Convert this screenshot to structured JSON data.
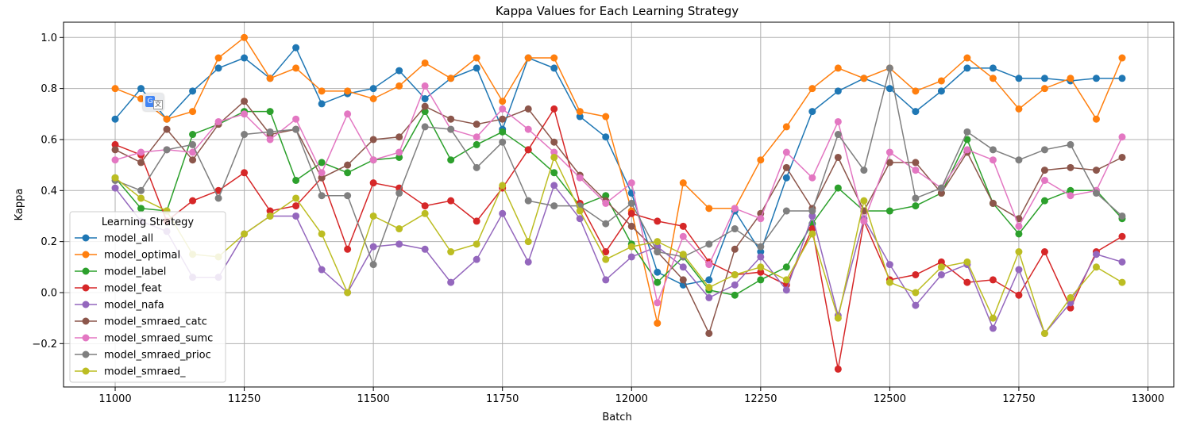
{
  "chart_data": {
    "type": "line",
    "title": "Kappa Values for Each Learning Strategy",
    "xlabel": "Batch",
    "ylabel": "Kappa",
    "xlim": [
      10900,
      13050
    ],
    "ylim": [
      -0.37,
      1.06
    ],
    "xticks": [
      11000,
      11250,
      11500,
      11750,
      12000,
      12250,
      12500,
      12750,
      13000
    ],
    "yticks": [
      -0.2,
      0.0,
      0.2,
      0.4,
      0.6,
      0.8,
      1.0
    ],
    "xtick_labels": [
      "11000",
      "11250",
      "11500",
      "11750",
      "12000",
      "12250",
      "12500",
      "12750",
      "13000"
    ],
    "ytick_labels": [
      "−0.2",
      "0.0",
      "0.2",
      "0.4",
      "0.6",
      "0.8",
      "1.0"
    ],
    "grid": true,
    "legend_title": "Learning Strategy",
    "legend_position": "lower-left",
    "x": [
      11000,
      11050,
      11100,
      11150,
      11200,
      11250,
      11300,
      11350,
      11400,
      11450,
      11500,
      11550,
      11600,
      11650,
      11700,
      11750,
      11800,
      11850,
      11900,
      11950,
      12000,
      12050,
      12100,
      12150,
      12200,
      12250,
      12300,
      12350,
      12400,
      12450,
      12500,
      12550,
      12600,
      12650,
      12700,
      12750,
      12800,
      12850,
      12900,
      12950
    ],
    "series": [
      {
        "name": "model_all",
        "color": "#1f77b4",
        "values": [
          0.68,
          0.8,
          0.68,
          0.79,
          0.88,
          0.92,
          0.84,
          0.96,
          0.74,
          0.78,
          0.8,
          0.87,
          0.76,
          0.84,
          0.88,
          0.64,
          0.92,
          0.88,
          0.69,
          0.61,
          0.39,
          0.08,
          0.03,
          0.05,
          0.32,
          0.16,
          0.45,
          0.71,
          0.79,
          0.84,
          0.8,
          0.71,
          0.79,
          0.88,
          0.88,
          0.84,
          0.84,
          0.83,
          0.84,
          0.84
        ]
      },
      {
        "name": "model_optimal",
        "color": "#ff7f0e",
        "values": [
          0.8,
          0.76,
          0.68,
          0.71,
          0.92,
          1.0,
          0.84,
          0.88,
          0.79,
          0.79,
          0.76,
          0.81,
          0.9,
          0.84,
          0.92,
          0.75,
          0.92,
          0.92,
          0.71,
          0.69,
          0.32,
          -0.12,
          0.43,
          0.33,
          0.33,
          0.52,
          0.65,
          0.8,
          0.88,
          0.84,
          0.88,
          0.79,
          0.83,
          0.92,
          0.84,
          0.72,
          0.8,
          0.84,
          0.68,
          0.92
        ]
      },
      {
        "name": "model_label",
        "color": "#2ca02c",
        "values": [
          0.45,
          0.33,
          0.32,
          0.62,
          0.66,
          0.71,
          0.71,
          0.44,
          0.51,
          0.47,
          0.52,
          0.53,
          0.71,
          0.52,
          0.58,
          0.63,
          0.56,
          0.47,
          0.34,
          0.38,
          0.19,
          0.04,
          0.14,
          0.01,
          -0.01,
          0.05,
          0.1,
          0.27,
          0.41,
          0.32,
          0.32,
          0.34,
          0.39,
          0.6,
          0.35,
          0.23,
          0.36,
          0.4,
          0.4,
          0.29
        ]
      },
      {
        "name": "model_feat",
        "color": "#d62728",
        "values": [
          0.58,
          0.54,
          0.28,
          0.36,
          0.4,
          0.47,
          0.32,
          0.34,
          0.45,
          0.17,
          0.43,
          0.41,
          0.34,
          0.36,
          0.28,
          0.41,
          0.56,
          0.72,
          0.35,
          0.16,
          0.31,
          0.28,
          0.26,
          0.12,
          0.07,
          0.08,
          0.03,
          0.25,
          -0.3,
          0.28,
          0.05,
          0.07,
          0.12,
          0.04,
          0.05,
          -0.01,
          0.16,
          -0.06,
          0.16,
          0.22
        ]
      },
      {
        "name": "model_nafa",
        "color": "#9467bd",
        "values": [
          0.41,
          0.28,
          0.24,
          0.06,
          0.06,
          0.23,
          0.3,
          0.3,
          0.09,
          0.0,
          0.18,
          0.19,
          0.17,
          0.04,
          0.13,
          0.31,
          0.12,
          0.42,
          0.29,
          0.05,
          0.14,
          0.18,
          0.1,
          -0.02,
          0.03,
          0.14,
          0.01,
          0.3,
          -0.09,
          0.29,
          0.11,
          -0.05,
          0.07,
          0.11,
          -0.14,
          0.09,
          -0.16,
          -0.04,
          0.15,
          0.12
        ]
      },
      {
        "name": "model_smraed_catc",
        "color": "#8c564b",
        "values": [
          0.56,
          0.51,
          0.64,
          0.52,
          0.66,
          0.75,
          0.62,
          0.64,
          0.45,
          0.5,
          0.6,
          0.61,
          0.73,
          0.68,
          0.66,
          0.68,
          0.72,
          0.59,
          0.46,
          0.36,
          0.26,
          0.16,
          0.05,
          -0.16,
          0.17,
          0.31,
          0.49,
          0.33,
          0.53,
          0.32,
          0.51,
          0.51,
          0.39,
          0.55,
          0.35,
          0.29,
          0.48,
          0.49,
          0.48,
          0.53
        ]
      },
      {
        "name": "model_smraed_sumc",
        "color": "#e377c2",
        "values": [
          0.52,
          0.55,
          0.56,
          0.55,
          0.67,
          0.7,
          0.6,
          0.68,
          0.47,
          0.7,
          0.52,
          0.55,
          0.81,
          0.64,
          0.61,
          0.72,
          0.64,
          0.55,
          0.45,
          0.35,
          0.43,
          -0.04,
          0.22,
          0.11,
          0.33,
          0.29,
          0.55,
          0.45,
          0.67,
          0.28,
          0.55,
          0.48,
          0.41,
          0.56,
          0.52,
          0.26,
          0.44,
          0.38,
          0.4,
          0.61
        ]
      },
      {
        "name": "model_smraed_prioc",
        "color": "#7f7f7f",
        "values": [
          0.44,
          0.4,
          0.56,
          0.58,
          0.37,
          0.62,
          0.63,
          0.64,
          0.38,
          0.38,
          0.11,
          0.39,
          0.65,
          0.64,
          0.49,
          0.59,
          0.36,
          0.34,
          0.34,
          0.27,
          0.35,
          0.16,
          0.14,
          0.19,
          0.25,
          0.18,
          0.32,
          0.32,
          0.62,
          0.48,
          0.88,
          0.37,
          0.41,
          0.63,
          0.56,
          0.52,
          0.56,
          0.58,
          0.39,
          0.3
        ]
      },
      {
        "name": "model_smraed_",
        "color": "#bcbd22",
        "values": [
          0.45,
          0.37,
          0.32,
          0.15,
          0.14,
          0.23,
          0.3,
          0.37,
          0.23,
          0.0,
          0.3,
          0.25,
          0.31,
          0.16,
          0.19,
          0.42,
          0.2,
          0.53,
          0.32,
          0.13,
          0.18,
          0.2,
          0.15,
          0.02,
          0.07,
          0.1,
          0.05,
          0.23,
          -0.1,
          0.36,
          0.04,
          0.0,
          0.1,
          0.12,
          -0.1,
          0.16,
          -0.16,
          -0.02,
          0.1,
          0.04
        ]
      }
    ]
  }
}
